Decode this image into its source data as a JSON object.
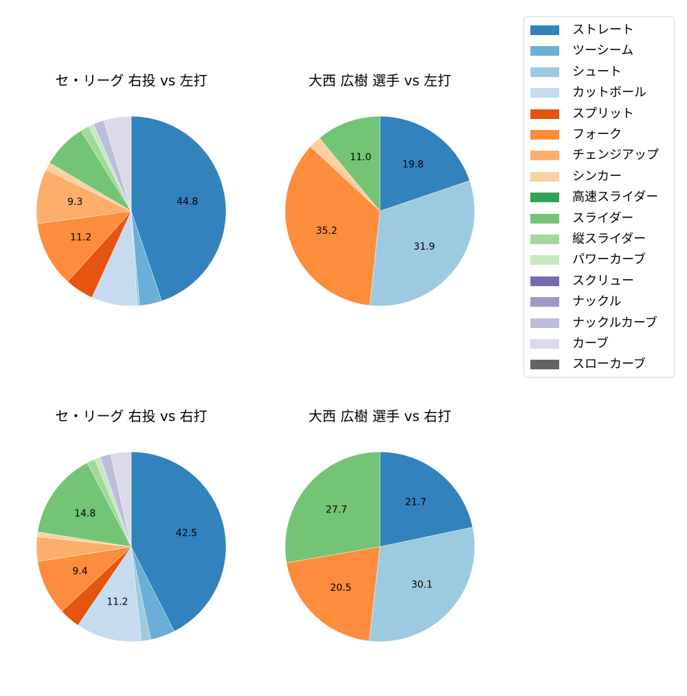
{
  "legend": {
    "items": [
      {
        "label": "ストレート",
        "color": "#3182bd"
      },
      {
        "label": "ツーシーム",
        "color": "#6baed6"
      },
      {
        "label": "シュート",
        "color": "#9ecae1"
      },
      {
        "label": "カットボール",
        "color": "#c6dbef"
      },
      {
        "label": "スプリット",
        "color": "#e6550d"
      },
      {
        "label": "フォーク",
        "color": "#fd8d3c"
      },
      {
        "label": "チェンジアップ",
        "color": "#fdae6b"
      },
      {
        "label": "シンカー",
        "color": "#fdd0a2"
      },
      {
        "label": "高速スライダー",
        "color": "#31a354"
      },
      {
        "label": "スライダー",
        "color": "#74c476"
      },
      {
        "label": "縦スライダー",
        "color": "#a1d99b"
      },
      {
        "label": "パワーカーブ",
        "color": "#c7e9c0"
      },
      {
        "label": "スクリュー",
        "color": "#756bb1"
      },
      {
        "label": "ナックル",
        "color": "#9e9ac8"
      },
      {
        "label": "ナックルカーブ",
        "color": "#bcbddc"
      },
      {
        "label": "カーブ",
        "color": "#dadaeb"
      },
      {
        "label": "スローカーブ",
        "color": "#636363"
      }
    ]
  },
  "panels": [
    {
      "title": "セ・リーグ 右投 vs 左打"
    },
    {
      "title": "大西 広樹 選手 vs 左打"
    },
    {
      "title": "セ・リーグ 右投 vs 右打"
    },
    {
      "title": "大西 広樹 選手 vs 右打"
    }
  ],
  "chart_data": [
    {
      "type": "pie",
      "title": "セ・リーグ 右投 vs 左打",
      "startangle": 90,
      "direction": "clockwise",
      "categories": [
        "ストレート",
        "ツーシーム",
        "シュート",
        "カットボール",
        "スプリット",
        "フォーク",
        "チェンジアップ",
        "シンカー",
        "スライダー",
        "縦スライダー",
        "パワーカーブ",
        "ナックルカーブ",
        "カーブ"
      ],
      "values": [
        44.8,
        3.8,
        0.4,
        7.8,
        4.9,
        11.2,
        9.3,
        1.3,
        7.6,
        1.5,
        0.9,
        1.8,
        4.7
      ],
      "colors": [
        "#3182bd",
        "#6baed6",
        "#9ecae1",
        "#c6dbef",
        "#e6550d",
        "#fd8d3c",
        "#fdae6b",
        "#fdd0a2",
        "#74c476",
        "#a1d99b",
        "#c7e9c0",
        "#bcbddc",
        "#dadaeb"
      ],
      "labels_shown": [
        "44.8",
        "",
        "",
        "",
        "",
        "11.2",
        "9.3",
        "",
        "",
        "",
        "",
        "",
        ""
      ]
    },
    {
      "type": "pie",
      "title": "大西 広樹 選手 vs 左打",
      "startangle": 90,
      "direction": "clockwise",
      "categories": [
        "ストレート",
        "シュート",
        "フォーク",
        "シンカー",
        "スライダー"
      ],
      "values": [
        19.8,
        31.9,
        35.2,
        2.1,
        11.0
      ],
      "colors": [
        "#3182bd",
        "#9ecae1",
        "#fd8d3c",
        "#fdd0a2",
        "#74c476"
      ],
      "labels_shown": [
        "19.8",
        "31.9",
        "35.2",
        "",
        "11.0"
      ]
    },
    {
      "type": "pie",
      "title": "セ・リーグ 右投 vs 右打",
      "startangle": 90,
      "direction": "clockwise",
      "categories": [
        "ストレート",
        "ツーシーム",
        "シュート",
        "カットボール",
        "スプリット",
        "フォーク",
        "チェンジアップ",
        "シンカー",
        "スライダー",
        "縦スライダー",
        "パワーカーブ",
        "ナックルカーブ",
        "カーブ"
      ],
      "values": [
        42.5,
        4.2,
        1.6,
        11.2,
        3.6,
        9.4,
        4.2,
        0.8,
        14.8,
        1.4,
        1.0,
        1.8,
        3.5
      ],
      "colors": [
        "#3182bd",
        "#6baed6",
        "#9ecae1",
        "#c6dbef",
        "#e6550d",
        "#fd8d3c",
        "#fdae6b",
        "#fdd0a2",
        "#74c476",
        "#a1d99b",
        "#c7e9c0",
        "#bcbddc",
        "#dadaeb"
      ],
      "labels_shown": [
        "42.5",
        "",
        "",
        "11.2",
        "",
        "9.4",
        "",
        "",
        "14.8",
        "",
        "",
        "",
        ""
      ]
    },
    {
      "type": "pie",
      "title": "大西 広樹 選手 vs 右打",
      "startangle": 90,
      "direction": "clockwise",
      "categories": [
        "ストレート",
        "シュート",
        "フォーク",
        "スライダー"
      ],
      "values": [
        21.7,
        30.1,
        20.5,
        27.7
      ],
      "colors": [
        "#3182bd",
        "#9ecae1",
        "#fd8d3c",
        "#74c476"
      ],
      "labels_shown": [
        "21.7",
        "30.1",
        "20.5",
        "27.7"
      ]
    }
  ]
}
